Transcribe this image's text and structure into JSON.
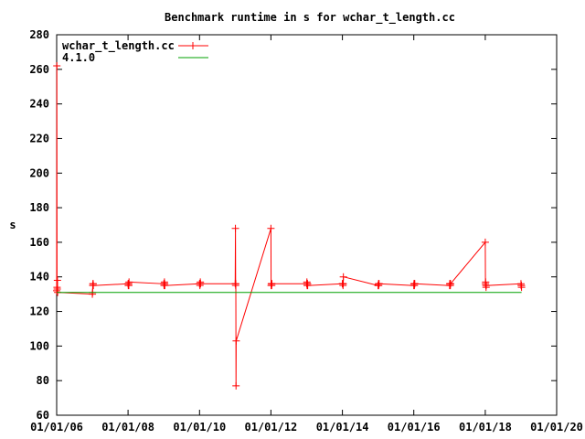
{
  "chart_data": {
    "type": "line",
    "title": "Benchmark runtime in s for wchar_t_length.cc",
    "xlabel": "",
    "ylabel": "s",
    "ylim": [
      60,
      280
    ],
    "yticks": [
      60,
      80,
      100,
      120,
      140,
      160,
      180,
      200,
      220,
      240,
      260,
      280
    ],
    "xlim": [
      "01/01/06",
      "01/01/20"
    ],
    "xticks": [
      "01/01/06",
      "01/01/08",
      "01/01/10",
      "01/01/12",
      "01/01/14",
      "01/01/16",
      "01/01/18",
      "01/01/20"
    ],
    "grid": false,
    "legend_position": "top-left",
    "series": [
      {
        "name": "wchar_t_length.cc",
        "color": "#ff0000",
        "marker": "plus",
        "x": [
          "01/01/06",
          "01/03/06",
          "01/05/06",
          "01/07/06",
          "01/09/06",
          "01/11/06",
          "01/01/07",
          "01/03/07",
          "01/05/07",
          "01/07/07",
          "01/09/07",
          "01/11/07",
          "01/01/08",
          "01/03/08",
          "01/05/08",
          "01/07/08",
          "01/09/08",
          "01/11/08",
          "01/01/09",
          "01/03/09",
          "01/05/09",
          "01/07/09",
          "01/09/09",
          "01/11/09",
          "01/01/10",
          "01/03/10",
          "01/05/10",
          "01/07/10",
          "01/09/10",
          "01/11/10",
          "01/01/11",
          "01/03/11",
          "01/05/11",
          "01/07/11",
          "01/09/11",
          "01/11/11",
          "01/01/12",
          "01/03/12",
          "01/05/12",
          "01/07/12",
          "01/09/12",
          "01/11/12",
          "01/01/13",
          "01/03/13",
          "01/05/13",
          "01/07/13",
          "01/09/13",
          "01/11/13",
          "01/01/14",
          "01/03/14",
          "01/05/14",
          "01/07/14",
          "01/09/14",
          "01/11/14",
          "01/01/15",
          "01/03/15",
          "01/05/15",
          "01/07/15",
          "01/09/15",
          "01/11/15",
          "01/01/16",
          "01/03/16",
          "01/05/16",
          "01/07/16",
          "01/09/16",
          "01/11/16",
          "01/01/17",
          "01/03/17",
          "01/05/17",
          "01/07/17",
          "01/09/17",
          "01/11/17",
          "01/01/18",
          "01/03/18",
          "01/05/18",
          "01/07/18",
          "01/09/18",
          "01/11/18",
          "01/01/19",
          "01/03/19",
          "01/05/19",
          "01/07/19"
        ],
        "values": [
          132,
          262,
          134,
          133,
          138,
          131,
          130,
          131,
          135,
          136,
          136,
          135,
          136,
          135,
          136,
          136,
          135,
          137,
          136,
          135,
          136,
          137,
          136,
          135,
          136,
          136,
          135,
          136,
          137,
          136,
          136,
          168,
          135,
          136,
          77,
          103,
          168,
          135,
          136,
          136,
          135,
          136,
          136,
          137,
          135,
          136,
          136,
          135,
          136,
          136,
          136,
          135,
          136,
          140,
          135,
          135,
          136,
          135,
          136,
          136,
          135,
          136,
          136,
          135,
          136,
          136,
          135,
          136,
          136,
          136,
          135,
          136,
          160,
          136,
          137,
          135,
          134,
          135,
          136,
          135,
          135,
          134
        ]
      },
      {
        "name": "4.1.0",
        "color": "#00a000",
        "marker": "none",
        "x": [
          "01/01/06",
          "01/07/19"
        ],
        "values": [
          131,
          131
        ]
      }
    ]
  }
}
